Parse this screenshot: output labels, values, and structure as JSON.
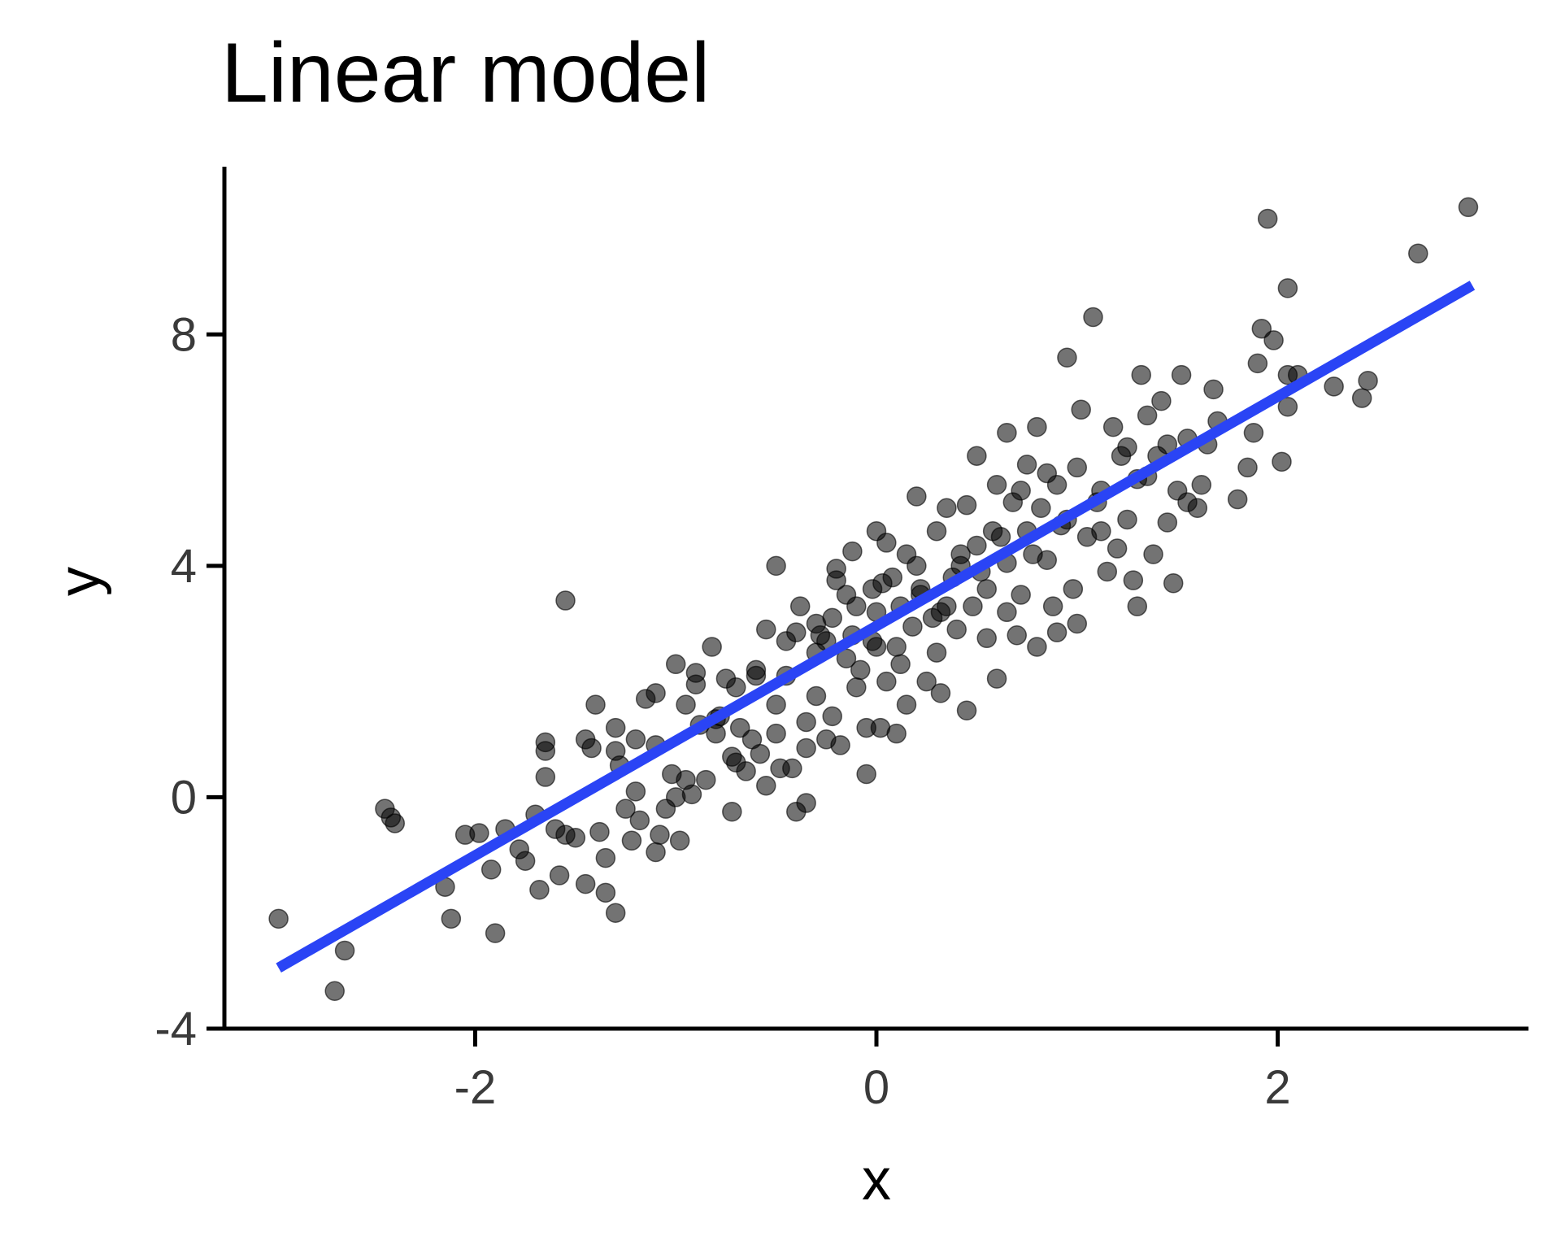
{
  "chart_data": {
    "type": "scatter",
    "title": "Linear model",
    "xlabel": "x",
    "ylabel": "y",
    "xlim": [
      -3.25,
      3.25
    ],
    "ylim": [
      -4,
      10.9
    ],
    "x_ticks": [
      -2,
      0,
      2
    ],
    "x_tick_labels": [
      "-2",
      "0",
      "2"
    ],
    "y_ticks": [
      -4,
      0,
      4,
      8
    ],
    "y_tick_labels": [
      "-4",
      "0",
      "4",
      "8"
    ],
    "grid": false,
    "colors": {
      "points": "#000000",
      "fit_line": "#2a44f5",
      "axis": "#000000",
      "tick_label": "#3a3a3a"
    },
    "fit_line": {
      "x": [
        -2.98,
        2.97
      ],
      "y": [
        -2.95,
        8.85
      ]
    },
    "points": [
      [
        -2.98,
        -2.1
      ],
      [
        -2.7,
        -3.35
      ],
      [
        -2.65,
        -2.65
      ],
      [
        -2.45,
        -0.2
      ],
      [
        -2.42,
        -0.35
      ],
      [
        -2.4,
        -0.45
      ],
      [
        -2.15,
        -1.55
      ],
      [
        -2.12,
        -2.1
      ],
      [
        -2.05,
        -0.65
      ],
      [
        -1.98,
        -0.62
      ],
      [
        -1.9,
        -2.35
      ],
      [
        -1.92,
        -1.25
      ],
      [
        -1.85,
        -0.55
      ],
      [
        -1.75,
        -1.1
      ],
      [
        -1.78,
        -0.9
      ],
      [
        -1.7,
        -0.3
      ],
      [
        -1.68,
        -1.6
      ],
      [
        -1.65,
        0.35
      ],
      [
        -1.65,
        0.8
      ],
      [
        -1.65,
        0.95
      ],
      [
        -1.6,
        -0.55
      ],
      [
        -1.58,
        -1.35
      ],
      [
        -1.55,
        -0.65
      ],
      [
        -1.5,
        -0.7
      ],
      [
        -1.55,
        3.4
      ],
      [
        -1.45,
        1.0
      ],
      [
        -1.4,
        1.6
      ],
      [
        -1.42,
        0.85
      ],
      [
        -1.45,
        -1.5
      ],
      [
        -1.38,
        -0.6
      ],
      [
        -1.35,
        -1.05
      ],
      [
        -1.35,
        -1.65
      ],
      [
        -1.3,
        0.8
      ],
      [
        -1.3,
        1.2
      ],
      [
        -1.3,
        -2.0
      ],
      [
        -1.28,
        0.55
      ],
      [
        -1.25,
        -0.2
      ],
      [
        -1.22,
        -0.75
      ],
      [
        -1.2,
        0.1
      ],
      [
        -1.15,
        1.7
      ],
      [
        -1.18,
        -0.4
      ],
      [
        -1.1,
        0.9
      ],
      [
        -1.1,
        -0.95
      ],
      [
        -1.1,
        1.8
      ],
      [
        -1.08,
        -0.65
      ],
      [
        -1.05,
        -0.2
      ],
      [
        -1.02,
        0.4
      ],
      [
        -1.0,
        2.3
      ],
      [
        -1.0,
        0.0
      ],
      [
        -0.98,
        -0.75
      ],
      [
        -0.95,
        0.3
      ],
      [
        -0.92,
        0.05
      ],
      [
        -0.9,
        1.95
      ],
      [
        -0.9,
        2.15
      ],
      [
        -0.88,
        1.25
      ],
      [
        -0.85,
        0.3
      ],
      [
        -0.82,
        2.6
      ],
      [
        -0.8,
        1.1
      ],
      [
        -0.8,
        1.35
      ],
      [
        -0.78,
        1.4
      ],
      [
        -0.75,
        2.05
      ],
      [
        -0.72,
        -0.25
      ],
      [
        -0.72,
        0.7
      ],
      [
        -0.7,
        0.6
      ],
      [
        -0.68,
        1.2
      ],
      [
        -0.65,
        0.45
      ],
      [
        -0.6,
        2.2
      ],
      [
        -0.6,
        2.1
      ],
      [
        -0.58,
        0.75
      ],
      [
        -0.55,
        0.2
      ],
      [
        -0.55,
        2.9
      ],
      [
        -0.5,
        1.1
      ],
      [
        -0.5,
        4.0
      ],
      [
        -0.5,
        1.6
      ],
      [
        -0.48,
        0.5
      ],
      [
        -0.45,
        2.1
      ],
      [
        -0.42,
        0.5
      ],
      [
        -0.4,
        -0.25
      ],
      [
        -0.4,
        2.85
      ],
      [
        -0.38,
        3.3
      ],
      [
        -0.35,
        -0.1
      ],
      [
        -0.35,
        0.85
      ],
      [
        -0.35,
        1.3
      ],
      [
        -0.3,
        1.75
      ],
      [
        -0.3,
        3.0
      ],
      [
        -0.28,
        2.8
      ],
      [
        -0.25,
        2.7
      ],
      [
        -0.25,
        1.0
      ],
      [
        -0.22,
        3.1
      ],
      [
        -0.2,
        3.75
      ],
      [
        -0.2,
        3.95
      ],
      [
        -0.18,
        0.9
      ],
      [
        -0.15,
        2.4
      ],
      [
        -0.15,
        3.5
      ],
      [
        -0.12,
        4.25
      ],
      [
        -0.1,
        1.9
      ],
      [
        -0.1,
        3.3
      ],
      [
        -0.08,
        2.2
      ],
      [
        -0.05,
        1.2
      ],
      [
        -0.05,
        0.4
      ],
      [
        -0.02,
        3.6
      ],
      [
        0.0,
        2.6
      ],
      [
        0.0,
        4.6
      ],
      [
        0.0,
        3.2
      ],
      [
        0.02,
        1.2
      ],
      [
        0.05,
        2.0
      ],
      [
        0.05,
        4.4
      ],
      [
        0.08,
        3.8
      ],
      [
        0.1,
        1.1
      ],
      [
        0.1,
        2.6
      ],
      [
        0.12,
        3.3
      ],
      [
        0.15,
        4.2
      ],
      [
        0.15,
        1.6
      ],
      [
        0.18,
        2.95
      ],
      [
        0.2,
        5.2
      ],
      [
        0.2,
        4.0
      ],
      [
        0.22,
        3.5
      ],
      [
        0.25,
        2.0
      ],
      [
        0.28,
        3.1
      ],
      [
        0.3,
        4.6
      ],
      [
        0.3,
        2.5
      ],
      [
        0.32,
        1.8
      ],
      [
        0.35,
        3.3
      ],
      [
        0.35,
        5.0
      ],
      [
        0.38,
        3.8
      ],
      [
        0.4,
        2.9
      ],
      [
        0.42,
        4.2
      ],
      [
        0.45,
        1.5
      ],
      [
        0.45,
        5.05
      ],
      [
        0.48,
        3.3
      ],
      [
        0.5,
        4.35
      ],
      [
        0.5,
        5.9
      ],
      [
        0.52,
        3.9
      ],
      [
        0.55,
        2.75
      ],
      [
        0.58,
        4.6
      ],
      [
        0.6,
        2.05
      ],
      [
        0.6,
        5.4
      ],
      [
        0.62,
        4.5
      ],
      [
        0.65,
        3.2
      ],
      [
        0.65,
        6.3
      ],
      [
        0.68,
        5.1
      ],
      [
        0.7,
        2.8
      ],
      [
        0.72,
        3.5
      ],
      [
        0.75,
        4.6
      ],
      [
        0.75,
        5.75
      ],
      [
        0.78,
        4.2
      ],
      [
        0.8,
        2.6
      ],
      [
        0.8,
        6.4
      ],
      [
        0.82,
        5.0
      ],
      [
        0.85,
        4.1
      ],
      [
        0.88,
        3.3
      ],
      [
        0.9,
        5.4
      ],
      [
        0.9,
        2.85
      ],
      [
        0.92,
        4.7
      ],
      [
        0.95,
        7.6
      ],
      [
        0.98,
        3.6
      ],
      [
        1.0,
        5.7
      ],
      [
        1.0,
        3.0
      ],
      [
        1.02,
        6.7
      ],
      [
        1.05,
        4.5
      ],
      [
        1.08,
        8.3
      ],
      [
        1.1,
        5.1
      ],
      [
        1.12,
        4.6
      ],
      [
        1.15,
        3.9
      ],
      [
        1.18,
        6.4
      ],
      [
        1.2,
        4.3
      ],
      [
        1.22,
        5.9
      ],
      [
        1.25,
        4.8
      ],
      [
        1.28,
        3.75
      ],
      [
        1.3,
        5.5
      ],
      [
        1.3,
        3.3
      ],
      [
        1.32,
        7.3
      ],
      [
        1.35,
        6.6
      ],
      [
        1.38,
        4.2
      ],
      [
        1.4,
        5.9
      ],
      [
        1.42,
        6.85
      ],
      [
        1.45,
        4.75
      ],
      [
        1.48,
        3.7
      ],
      [
        1.5,
        5.3
      ],
      [
        1.52,
        7.3
      ],
      [
        1.55,
        5.1
      ],
      [
        1.6,
        5.0
      ],
      [
        1.62,
        5.4
      ],
      [
        1.65,
        6.1
      ],
      [
        1.68,
        7.05
      ],
      [
        1.7,
        6.5
      ],
      [
        1.8,
        5.15
      ],
      [
        1.85,
        5.7
      ],
      [
        1.88,
        6.3
      ],
      [
        1.9,
        7.5
      ],
      [
        1.92,
        8.1
      ],
      [
        1.95,
        10.0
      ],
      [
        1.98,
        7.9
      ],
      [
        2.02,
        5.8
      ],
      [
        2.05,
        8.8
      ],
      [
        2.05,
        7.3
      ],
      [
        2.05,
        6.75
      ],
      [
        2.1,
        7.3
      ],
      [
        2.28,
        7.1
      ],
      [
        2.42,
        6.9
      ],
      [
        2.45,
        7.2
      ],
      [
        2.7,
        9.4
      ],
      [
        2.95,
        10.2
      ],
      [
        -1.2,
        1.0
      ],
      [
        -0.95,
        1.6
      ],
      [
        -0.7,
        1.9
      ],
      [
        -0.62,
        1.0
      ],
      [
        -0.45,
        2.7
      ],
      [
        -0.3,
        2.5
      ],
      [
        -0.22,
        1.4
      ],
      [
        -0.12,
        2.8
      ],
      [
        -0.02,
        2.7
      ],
      [
        0.03,
        3.7
      ],
      [
        0.12,
        2.3
      ],
      [
        0.22,
        3.6
      ],
      [
        0.32,
        3.2
      ],
      [
        0.42,
        4.0
      ],
      [
        0.55,
        3.6
      ],
      [
        0.65,
        4.05
      ],
      [
        0.72,
        5.3
      ],
      [
        0.85,
        5.6
      ],
      [
        0.95,
        4.8
      ],
      [
        1.12,
        5.3
      ],
      [
        1.25,
        6.05
      ],
      [
        1.35,
        5.55
      ],
      [
        1.45,
        6.1
      ],
      [
        1.55,
        6.2
      ]
    ]
  }
}
